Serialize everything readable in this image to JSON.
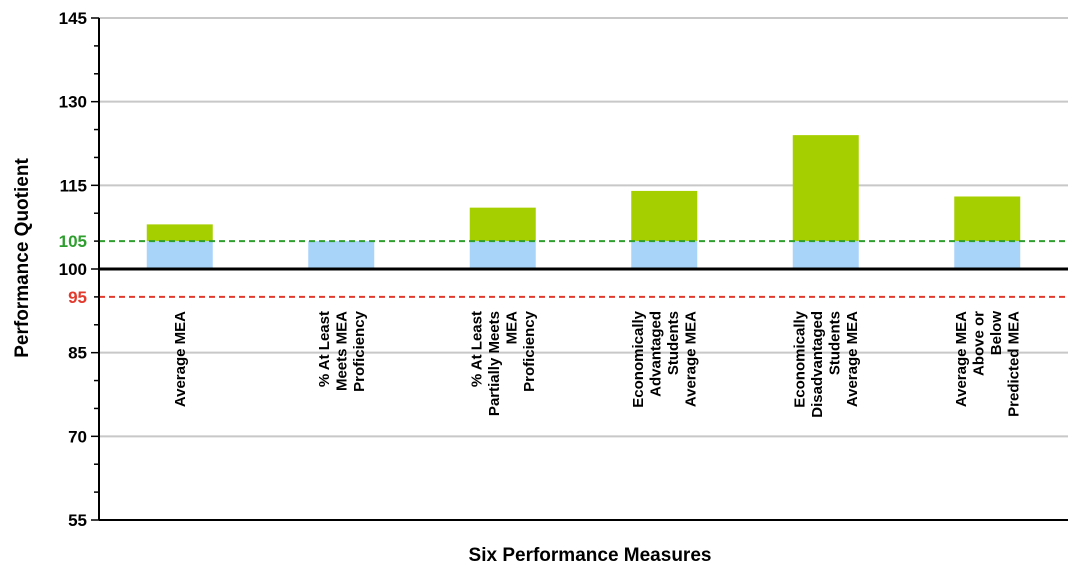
{
  "chart_data": {
    "type": "bar",
    "ylabel": "Performance Quotient",
    "xlabel": "Six Performance Measures",
    "ylim": [
      55,
      145
    ],
    "yticks": [
      55,
      70,
      85,
      100,
      115,
      130,
      145
    ],
    "baseline": 100,
    "categories": [
      "Average MEA",
      "% At Least Meets MEA Proficiency",
      "% At Least Partially Meets MEA Proficiency",
      "Economically Advantaged Students Average MEA",
      "Economically Disadvantaged Students Average MEA",
      "Average MEA Above or Below Predicted MEA"
    ],
    "category_label_lines": [
      [
        "Average MEA"
      ],
      [
        "% At Least",
        "Meets MEA",
        "Proficiency"
      ],
      [
        "% At Least",
        "Partially Meets",
        "MEA",
        "Proficiency"
      ],
      [
        "Economically",
        "Advantaged",
        "Students",
        "Average MEA"
      ],
      [
        "Economically",
        "Disadvantaged",
        "Students",
        "Average MEA"
      ],
      [
        "Average MEA",
        "Above or",
        "Below",
        "Predicted MEA"
      ]
    ],
    "values": [
      108,
      105,
      111,
      114,
      124,
      113
    ],
    "reference_lines": [
      {
        "value": 105,
        "label": "105",
        "color": "#2e9e2e",
        "style": "dashed"
      },
      {
        "value": 95,
        "label": "95",
        "color": "#e23b2e",
        "style": "dashed"
      }
    ],
    "colors": {
      "above_reference": "#a6cf00",
      "below_reference": "#a8d4fa",
      "grid": "#c8c8c8"
    },
    "grid": true
  }
}
